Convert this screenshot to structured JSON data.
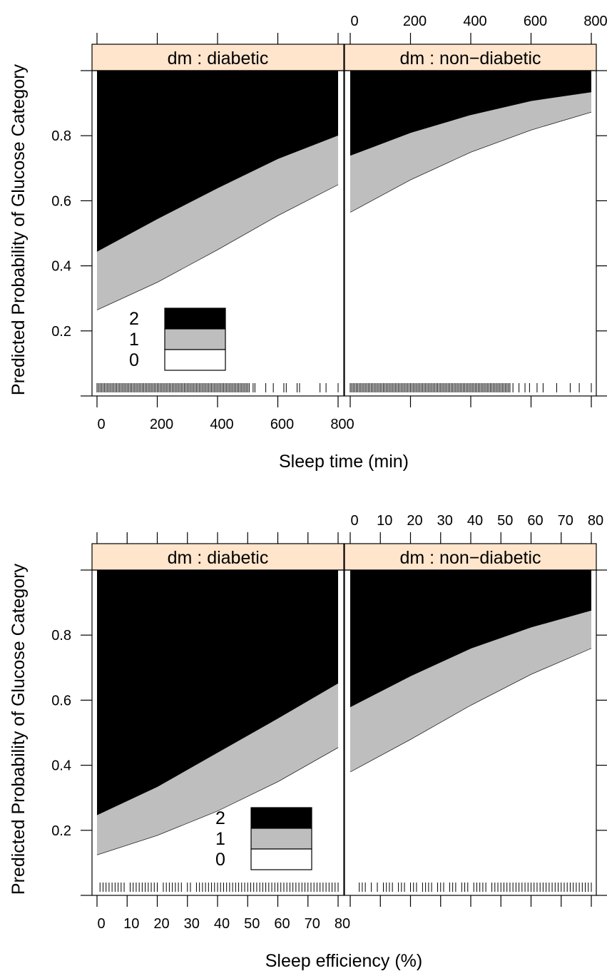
{
  "chart_data": [
    {
      "type": "area",
      "stacked": true,
      "xlabel": "Sleep time (min)",
      "ylabel": "Predicted Probability of Glucose Category",
      "xlim": [
        0,
        800
      ],
      "ylim": [
        0,
        1
      ],
      "xticks": [
        "0",
        "200",
        "400",
        "600",
        "800"
      ],
      "yticks": [
        "0.2",
        "0.4",
        "0.6",
        "0.8"
      ],
      "legend": {
        "title": "",
        "entries": [
          "2",
          "1",
          "0"
        ],
        "colors": [
          "#000000",
          "#bebebe",
          "#ffffff"
        ],
        "position": "bottom-left"
      },
      "panels": [
        {
          "strip": "dm : diabetic",
          "x": [
            0,
            200,
            400,
            600,
            800
          ],
          "series": [
            {
              "name": "0",
              "values": [
                0.265,
                0.35,
                0.45,
                0.555,
                0.65
              ]
            },
            {
              "name": "1",
              "values": [
                0.18,
                0.195,
                0.19,
                0.175,
                0.152
              ]
            },
            {
              "name": "2",
              "values": [
                0.555,
                0.455,
                0.36,
                0.27,
                0.198
              ]
            }
          ],
          "rug": [
            0,
            5,
            10,
            15,
            20,
            25,
            30,
            35,
            40,
            45,
            50,
            55,
            60,
            65,
            70,
            75,
            80,
            85,
            90,
            95,
            100,
            105,
            110,
            115,
            120,
            125,
            130,
            135,
            140,
            145,
            150,
            155,
            160,
            165,
            170,
            175,
            180,
            185,
            190,
            195,
            200,
            205,
            210,
            215,
            220,
            225,
            230,
            235,
            240,
            245,
            250,
            255,
            260,
            265,
            270,
            275,
            280,
            285,
            290,
            295,
            300,
            305,
            310,
            315,
            320,
            325,
            330,
            335,
            340,
            345,
            350,
            355,
            360,
            365,
            370,
            375,
            380,
            385,
            390,
            395,
            400,
            405,
            410,
            415,
            420,
            425,
            430,
            435,
            440,
            445,
            450,
            455,
            460,
            465,
            470,
            475,
            480,
            485,
            490,
            495,
            500,
            505,
            518,
            524,
            560,
            585,
            620,
            628,
            664,
            672,
            740,
            760,
            800
          ]
        },
        {
          "strip": "dm : non−diabetic",
          "x": [
            0,
            200,
            400,
            600,
            800
          ],
          "series": [
            {
              "name": "0",
              "values": [
                0.565,
                0.665,
                0.75,
                0.818,
                0.873
              ]
            },
            {
              "name": "1",
              "values": [
                0.175,
                0.145,
                0.115,
                0.09,
                0.062
              ]
            },
            {
              "name": "2",
              "values": [
                0.26,
                0.19,
                0.135,
                0.092,
                0.065
              ]
            }
          ],
          "rug": [
            0,
            5,
            10,
            15,
            20,
            25,
            30,
            35,
            40,
            45,
            50,
            55,
            60,
            65,
            70,
            75,
            80,
            85,
            90,
            95,
            100,
            105,
            110,
            115,
            120,
            125,
            130,
            135,
            140,
            145,
            150,
            155,
            160,
            165,
            170,
            175,
            180,
            185,
            190,
            195,
            200,
            205,
            210,
            215,
            220,
            225,
            230,
            235,
            240,
            245,
            250,
            255,
            260,
            265,
            270,
            275,
            280,
            285,
            290,
            295,
            300,
            305,
            310,
            315,
            320,
            325,
            330,
            335,
            340,
            345,
            350,
            355,
            360,
            365,
            370,
            375,
            380,
            385,
            390,
            395,
            400,
            405,
            410,
            415,
            420,
            425,
            430,
            435,
            440,
            445,
            450,
            455,
            460,
            465,
            470,
            475,
            480,
            485,
            490,
            495,
            500,
            505,
            510,
            515,
            520,
            525,
            530,
            540,
            560,
            580,
            595,
            620,
            640,
            685,
            730,
            760,
            800
          ]
        }
      ]
    },
    {
      "type": "area",
      "stacked": true,
      "xlabel": "Sleep efficiency (%)",
      "ylabel": "Predicted Probability of Glucose Category",
      "xlim": [
        0,
        80
      ],
      "ylim": [
        0,
        1
      ],
      "xticks": [
        "0",
        "10",
        "20",
        "30",
        "40",
        "50",
        "60",
        "70",
        "80"
      ],
      "yticks": [
        "0.2",
        "0.4",
        "0.6",
        "0.8"
      ],
      "legend": {
        "title": "",
        "entries": [
          "2",
          "1",
          "0"
        ],
        "colors": [
          "#000000",
          "#bebebe",
          "#ffffff"
        ],
        "position": "bottom-center"
      },
      "panels": [
        {
          "strip": "dm : diabetic",
          "x": [
            0,
            20,
            40,
            60,
            80
          ],
          "series": [
            {
              "name": "0",
              "values": [
                0.125,
                0.185,
                0.26,
                0.35,
                0.455
              ]
            },
            {
              "name": "1",
              "values": [
                0.123,
                0.15,
                0.18,
                0.195,
                0.198
              ]
            },
            {
              "name": "2",
              "values": [
                0.752,
                0.665,
                0.56,
                0.455,
                0.347
              ]
            }
          ],
          "rug": [
            1,
            2,
            3,
            4,
            5,
            6,
            7,
            8,
            9,
            11,
            12,
            13,
            14,
            15,
            16,
            17,
            18,
            19,
            20,
            22,
            23,
            24,
            25,
            26,
            27,
            28,
            30,
            31,
            33,
            34,
            35,
            36,
            37,
            38,
            39,
            40,
            41,
            42,
            43,
            44,
            45,
            46,
            47,
            48,
            49,
            50,
            51,
            52,
            53,
            54,
            55,
            56,
            57,
            58,
            59,
            60,
            61,
            62,
            63,
            64,
            65,
            66,
            67,
            68,
            69,
            70,
            71,
            72,
            73,
            74,
            75,
            76,
            77,
            78,
            79,
            80
          ]
        },
        {
          "strip": "dm : non−diabetic",
          "x": [
            0,
            20,
            40,
            60,
            80
          ],
          "series": [
            {
              "name": "0",
              "values": [
                0.38,
                0.48,
                0.585,
                0.68,
                0.76
              ]
            },
            {
              "name": "1",
              "values": [
                0.2,
                0.195,
                0.175,
                0.145,
                0.117
              ]
            },
            {
              "name": "2",
              "values": [
                0.42,
                0.325,
                0.24,
                0.175,
                0.123
              ]
            }
          ],
          "rug": [
            3,
            4,
            5,
            7,
            9,
            11,
            12,
            13,
            14,
            16,
            17,
            18,
            20,
            21,
            22,
            24,
            25,
            26,
            27,
            29,
            30,
            31,
            33,
            34,
            35,
            37,
            38,
            39,
            41,
            42,
            43,
            44,
            45,
            47,
            48,
            49,
            50,
            51,
            52,
            53,
            54,
            55,
            56,
            57,
            58,
            59,
            60,
            61,
            62,
            63,
            64,
            65,
            66,
            67,
            68,
            69,
            70,
            71,
            72,
            73,
            74,
            75,
            76,
            77,
            78,
            79,
            80
          ]
        }
      ]
    }
  ]
}
